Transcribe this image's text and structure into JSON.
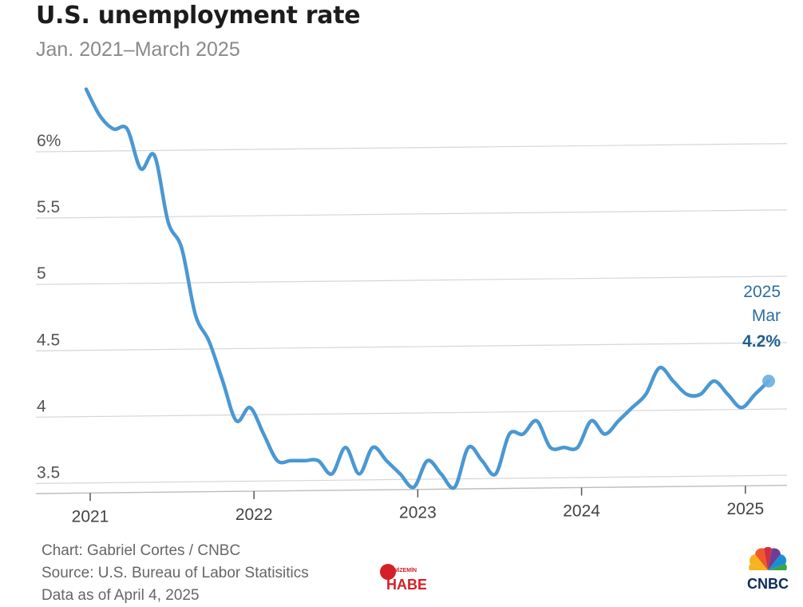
{
  "title": "U.S. unemployment rate",
  "subtitle": "Jan. 2021–March 2025",
  "chart_data": {
    "type": "line",
    "y_tick_labels": [
      "3.5",
      "4",
      "4.5",
      "5",
      "5.5",
      "6%"
    ],
    "y_ticks": [
      3.5,
      4,
      4.5,
      5,
      5.5,
      6
    ],
    "x_tick_labels": [
      "2021",
      "2022",
      "2023",
      "2024",
      "2025"
    ],
    "ylim": [
      3.4,
      6.5
    ],
    "grid": "horizontal",
    "series": [
      {
        "color": "#4a98d3",
        "points": [
          [
            "2021-01",
            6.4
          ],
          [
            "2021-02",
            6.2
          ],
          [
            "2021-03",
            6.1
          ],
          [
            "2021-04",
            6.1
          ],
          [
            "2021-05",
            5.8
          ],
          [
            "2021-06",
            5.9
          ],
          [
            "2021-07",
            5.4
          ],
          [
            "2021-08",
            5.2
          ],
          [
            "2021-09",
            4.7
          ],
          [
            "2021-10",
            4.5
          ],
          [
            "2021-11",
            4.2
          ],
          [
            "2021-12",
            3.9
          ],
          [
            "2022-01",
            4.0
          ],
          [
            "2022-02",
            3.8
          ],
          [
            "2022-03",
            3.6
          ],
          [
            "2022-04",
            3.6
          ],
          [
            "2022-05",
            3.6
          ],
          [
            "2022-06",
            3.6
          ],
          [
            "2022-07",
            3.5
          ],
          [
            "2022-08",
            3.7
          ],
          [
            "2022-09",
            3.5
          ],
          [
            "2022-10",
            3.7
          ],
          [
            "2022-11",
            3.6
          ],
          [
            "2022-12",
            3.5
          ],
          [
            "2023-01",
            3.4
          ],
          [
            "2023-02",
            3.6
          ],
          [
            "2023-03",
            3.5
          ],
          [
            "2023-04",
            3.4
          ],
          [
            "2023-05",
            3.7
          ],
          [
            "2023-06",
            3.6
          ],
          [
            "2023-07",
            3.5
          ],
          [
            "2023-08",
            3.8
          ],
          [
            "2023-09",
            3.8
          ],
          [
            "2023-10",
            3.9
          ],
          [
            "2023-11",
            3.7
          ],
          [
            "2023-12",
            3.7
          ],
          [
            "2024-01",
            3.7
          ],
          [
            "2024-02",
            3.9
          ],
          [
            "2024-03",
            3.8
          ],
          [
            "2024-04",
            3.9
          ],
          [
            "2024-05",
            4.0
          ],
          [
            "2024-06",
            4.1
          ],
          [
            "2024-07",
            4.3
          ],
          [
            "2024-08",
            4.2
          ],
          [
            "2024-09",
            4.1
          ],
          [
            "2024-10",
            4.1
          ],
          [
            "2024-11",
            4.2
          ],
          [
            "2024-12",
            4.1
          ],
          [
            "2025-01",
            4.0
          ],
          [
            "2025-02",
            4.1
          ],
          [
            "2025-03",
            4.2
          ]
        ]
      }
    ],
    "annotation": {
      "line1": "2025",
      "line2": "Mar",
      "value_label": "4.2%"
    }
  },
  "footer": {
    "credit": "Chart: Gabriel Cortes / CNBC",
    "source": "Source: U.S. Bureau of Labor Statisitics",
    "date": "Data as of April 4, 2025"
  },
  "watermark": {
    "top": "YENİZEMİN",
    "bottom": "HABER",
    "color": "#d42027"
  },
  "logo": {
    "text": "CNBC",
    "icon": "peacock-icon"
  }
}
